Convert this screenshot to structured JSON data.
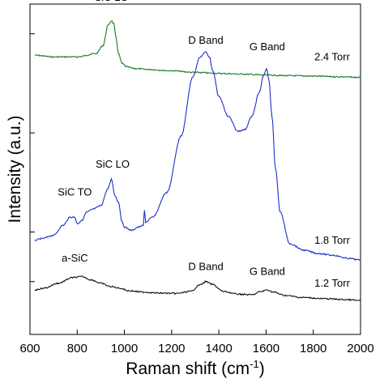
{
  "chart_data": {
    "type": "line",
    "xlabel": "Raman shift (cm",
    "xlabel_sup": "-1",
    "xlabel_close": ")",
    "ylabel": "Intensity (a.u.)",
    "xlim": [
      600,
      2000
    ],
    "ylim": [
      0,
      10
    ],
    "x_ticks": [
      600,
      800,
      1000,
      1200,
      1400,
      1600,
      1800,
      2000
    ],
    "y_tick_values": [
      1.6,
      3.1,
      6.1,
      9.1
    ],
    "grid": false,
    "series": [
      {
        "name": "2.4 Torr",
        "color": "#1a7a2a",
        "x": [
          620,
          700,
          800,
          880,
          910,
          930,
          945,
          955,
          965,
          975,
          990,
          1010,
          1040,
          1100,
          1200,
          1300,
          1400,
          1500,
          1600,
          1700,
          1800,
          1900,
          2000
        ],
        "y": [
          8.45,
          8.4,
          8.4,
          8.5,
          8.75,
          9.35,
          9.5,
          9.4,
          8.95,
          8.5,
          8.2,
          8.1,
          8.05,
          8.02,
          7.98,
          7.93,
          7.9,
          7.88,
          7.85,
          7.83,
          7.82,
          7.8,
          7.78
        ]
      },
      {
        "name": "1.8 Torr",
        "color": "#1f2fc8",
        "x": [
          620,
          650,
          700,
          740,
          770,
          790,
          800,
          820,
          840,
          870,
          900,
          930,
          945,
          960,
          975,
          990,
          1000,
          1030,
          1060,
          1080,
          1085,
          1090,
          1120,
          1180,
          1240,
          1290,
          1320,
          1345,
          1360,
          1375,
          1400,
          1440,
          1480,
          1510,
          1540,
          1570,
          1590,
          1602,
          1612,
          1625,
          1640,
          1660,
          1700,
          1760,
          1820,
          1880,
          1950,
          2000
        ],
        "y": [
          2.85,
          2.9,
          3.0,
          3.3,
          3.55,
          3.55,
          3.35,
          3.45,
          3.7,
          3.8,
          3.9,
          4.4,
          4.7,
          4.2,
          4.0,
          3.4,
          3.25,
          3.15,
          3.25,
          3.3,
          3.75,
          3.4,
          3.55,
          4.3,
          6.0,
          7.8,
          8.4,
          8.55,
          8.4,
          7.95,
          7.2,
          6.6,
          6.15,
          6.2,
          6.6,
          7.3,
          7.85,
          8.05,
          7.7,
          6.6,
          5.0,
          3.7,
          2.75,
          2.55,
          2.45,
          2.4,
          2.3,
          2.25
        ]
      },
      {
        "name": "1.2 Torr",
        "color": "#111111",
        "x": [
          620,
          660,
          720,
          780,
          820,
          860,
          900,
          940,
          980,
          1020,
          1080,
          1150,
          1220,
          1280,
          1320,
          1345,
          1370,
          1420,
          1480,
          1540,
          1580,
          1605,
          1630,
          1680,
          1750,
          1850,
          1950,
          2000
        ],
        "y": [
          1.35,
          1.4,
          1.55,
          1.72,
          1.75,
          1.65,
          1.55,
          1.45,
          1.4,
          1.32,
          1.28,
          1.25,
          1.24,
          1.3,
          1.5,
          1.6,
          1.52,
          1.3,
          1.22,
          1.2,
          1.3,
          1.35,
          1.28,
          1.18,
          1.12,
          1.08,
          1.05,
          1.02
        ]
      }
    ],
    "annotations": [
      {
        "text": "SiC LO",
        "x": 945,
        "y": 10.1
      },
      {
        "text": "D Band",
        "x": 1345,
        "y": 8.8
      },
      {
        "text": "G Band",
        "x": 1605,
        "y": 8.6
      },
      {
        "text": "2.4 Torr",
        "x": 1880,
        "y": 8.3
      },
      {
        "text": "SiC TO",
        "x": 790,
        "y": 4.2
      },
      {
        "text": "SiC LO",
        "x": 950,
        "y": 5.05
      },
      {
        "text": "1.8 Torr",
        "x": 1880,
        "y": 2.75
      },
      {
        "text": "a-SiC",
        "x": 790,
        "y": 2.2
      },
      {
        "text": "D Band",
        "x": 1345,
        "y": 1.95
      },
      {
        "text": "G Band",
        "x": 1605,
        "y": 1.8
      },
      {
        "text": "1.2 Torr",
        "x": 1880,
        "y": 1.45
      }
    ]
  }
}
